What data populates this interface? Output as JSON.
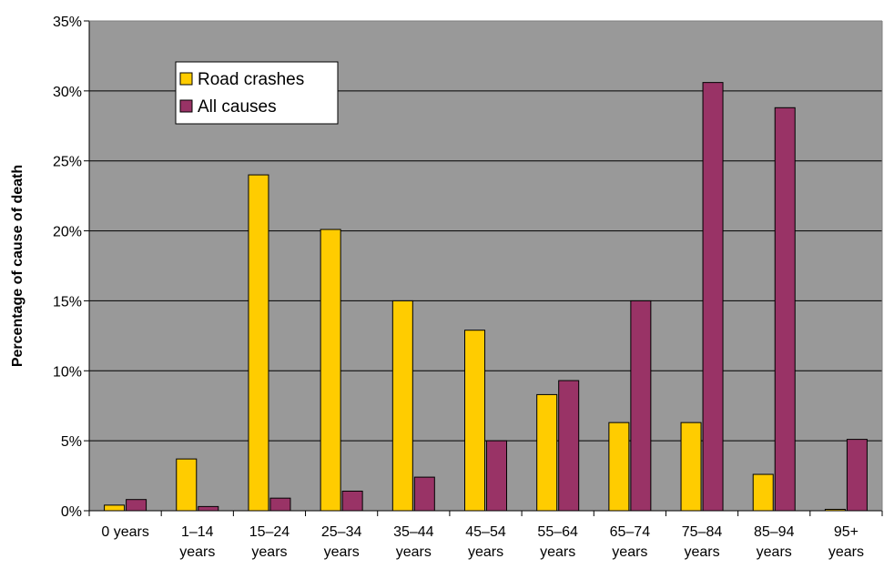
{
  "chart_data": {
    "type": "bar",
    "title": "",
    "xlabel": "",
    "ylabel": "Percentage of cause of death",
    "ylim": [
      0,
      35
    ],
    "yticks": [
      "0%",
      "5%",
      "10%",
      "15%",
      "20%",
      "25%",
      "30%",
      "35%"
    ],
    "ytick_values": [
      0,
      5,
      10,
      15,
      20,
      25,
      30,
      35
    ],
    "categories": [
      [
        "0 years"
      ],
      [
        "1–14",
        "years"
      ],
      [
        "15–24",
        "years"
      ],
      [
        "25–34",
        "years"
      ],
      [
        "35–44",
        "years"
      ],
      [
        "45–54",
        "years"
      ],
      [
        "55–64",
        "years"
      ],
      [
        "65–74",
        "years"
      ],
      [
        "75–84",
        "years"
      ],
      [
        "85–94",
        "years"
      ],
      [
        "95+",
        "years"
      ]
    ],
    "series": [
      {
        "name": "Road crashes",
        "color": "#FFCC00",
        "values": [
          0.4,
          3.7,
          24.0,
          20.1,
          15.0,
          12.9,
          8.3,
          6.3,
          6.3,
          2.6,
          0.1
        ]
      },
      {
        "name": "All causes",
        "color": "#993366",
        "values": [
          0.8,
          0.3,
          0.9,
          1.4,
          2.4,
          5.0,
          9.3,
          15.0,
          30.6,
          28.8,
          5.1
        ]
      }
    ],
    "plot_background": "#999999",
    "grid": true,
    "legend_position": "top-left"
  }
}
